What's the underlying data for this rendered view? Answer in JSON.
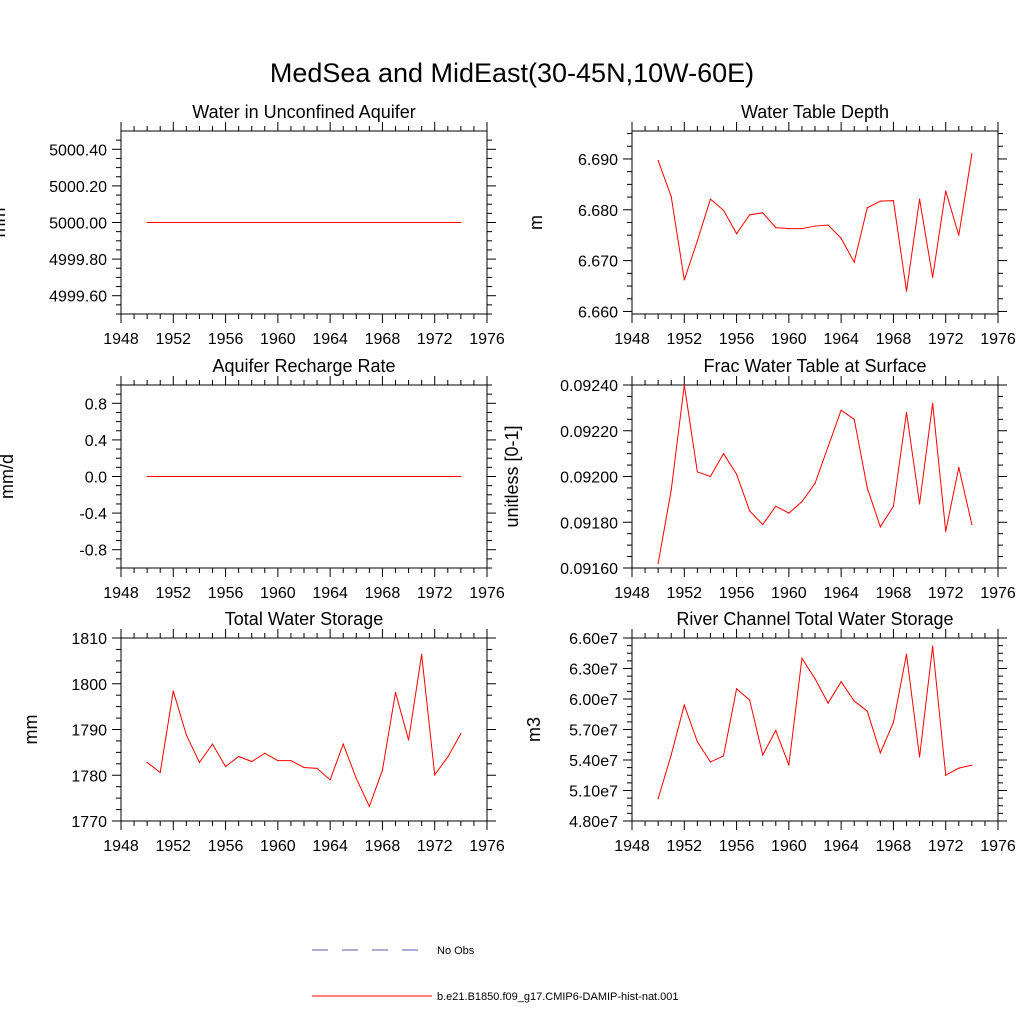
{
  "figure": {
    "title": "MedSea and MidEast(30-45N,10W-60E)"
  },
  "legend": {
    "entries": [
      {
        "label": "No Obs",
        "color": "#5a5aa0",
        "style": "dashed"
      },
      {
        "label": "b.e21.B1850.f09_g17.CMIP6-DAMIP-hist-nat.001",
        "color": "#ff0000",
        "style": "solid"
      }
    ]
  },
  "chart_data": [
    {
      "type": "line",
      "title": "Water in Unconfined Aquifer",
      "ylabel": "mm",
      "xlim": [
        1948,
        1976
      ],
      "ylim": [
        4999.5,
        5000.5
      ],
      "xticks": [
        "1948",
        "1952",
        "1956",
        "1960",
        "1964",
        "1968",
        "1972",
        "1976"
      ],
      "yticks": [
        "4999.60",
        "4999.80",
        "5000.00",
        "5000.20",
        "5000.40"
      ],
      "ytick_values": [
        4999.6,
        4999.8,
        5000.0,
        5000.2,
        5000.4
      ],
      "series": [
        {
          "color": "#ff0000",
          "x": [
            1950,
            1974
          ],
          "y": [
            5000.0,
            5000.0
          ]
        }
      ]
    },
    {
      "type": "line",
      "title": "Water Table Depth",
      "ylabel": "m",
      "xlim": [
        1948,
        1976
      ],
      "ylim": [
        6.6595,
        6.6955
      ],
      "xticks": [
        "1948",
        "1952",
        "1956",
        "1960",
        "1964",
        "1968",
        "1972",
        "1976"
      ],
      "yticks": [
        "6.660",
        "6.670",
        "6.680",
        "6.690"
      ],
      "ytick_values": [
        6.66,
        6.67,
        6.68,
        6.69
      ],
      "series": [
        {
          "color": "#ff0000",
          "x": [
            1950,
            1951,
            1952,
            1953,
            1954,
            1955,
            1956,
            1957,
            1958,
            1959,
            1960,
            1961,
            1962,
            1963,
            1964,
            1965,
            1966,
            1967,
            1968,
            1969,
            1970,
            1971,
            1972,
            1973,
            1974
          ],
          "y": [
            6.6897,
            6.6826,
            6.6662,
            6.6739,
            6.6821,
            6.6799,
            6.6753,
            6.679,
            6.6794,
            6.6765,
            6.6763,
            6.6763,
            6.6768,
            6.677,
            6.6744,
            6.6697,
            6.6804,
            6.6817,
            6.6818,
            6.664,
            6.6821,
            6.6667,
            6.6837,
            6.675,
            6.691
          ]
        }
      ]
    },
    {
      "type": "line",
      "title": "Aquifer Recharge Rate",
      "ylabel": "mm/d",
      "xlim": [
        1948,
        1976
      ],
      "ylim": [
        -1.0,
        1.0
      ],
      "xticks": [
        "1948",
        "1952",
        "1956",
        "1960",
        "1964",
        "1968",
        "1972",
        "1976"
      ],
      "yticks": [
        "-0.8",
        "-0.4",
        "0.0",
        "0.4",
        "0.8"
      ],
      "ytick_values": [
        -0.8,
        -0.4,
        0.0,
        0.4,
        0.8
      ],
      "series": [
        {
          "color": "#ff0000",
          "x": [
            1950,
            1974
          ],
          "y": [
            0.0,
            0.0
          ]
        }
      ]
    },
    {
      "type": "line",
      "title": "Frac Water Table at Surface",
      "ylabel": "unitless [0-1]",
      "xlim": [
        1948,
        1976
      ],
      "ylim": [
        0.0916,
        0.0924
      ],
      "xticks": [
        "1948",
        "1952",
        "1956",
        "1960",
        "1964",
        "1968",
        "1972",
        "1976"
      ],
      "yticks": [
        "0.09160",
        "0.09180",
        "0.09200",
        "0.09220",
        "0.09240"
      ],
      "ytick_values": [
        0.0916,
        0.0918,
        0.092,
        0.0922,
        0.0924
      ],
      "series": [
        {
          "color": "#ff0000",
          "x": [
            1950,
            1951,
            1952,
            1953,
            1954,
            1955,
            1956,
            1957,
            1958,
            1959,
            1960,
            1961,
            1962,
            1963,
            1964,
            1965,
            1966,
            1967,
            1968,
            1969,
            1970,
            1971,
            1972,
            1973,
            1974
          ],
          "y": [
            0.09162,
            0.09194,
            0.0924,
            0.09202,
            0.092,
            0.0921,
            0.09201,
            0.09185,
            0.09179,
            0.09187,
            0.09184,
            0.09189,
            0.09197,
            0.09213,
            0.09229,
            0.09225,
            0.09195,
            0.09178,
            0.09187,
            0.09228,
            0.09188,
            0.09232,
            0.09176,
            0.09204,
            0.09179
          ]
        }
      ]
    },
    {
      "type": "line",
      "title": "Total Water Storage",
      "ylabel": "mm",
      "xlim": [
        1948,
        1976
      ],
      "ylim": [
        1770,
        1810
      ],
      "xticks": [
        "1948",
        "1952",
        "1956",
        "1960",
        "1964",
        "1968",
        "1972",
        "1976"
      ],
      "yticks": [
        "1770",
        "1780",
        "1790",
        "1800",
        "1810"
      ],
      "ytick_values": [
        1770,
        1780,
        1790,
        1800,
        1810
      ],
      "series": [
        {
          "color": "#ff0000",
          "x": [
            1950,
            1951,
            1952,
            1953,
            1954,
            1955,
            1956,
            1957,
            1958,
            1959,
            1960,
            1961,
            1962,
            1963,
            1964,
            1965,
            1966,
            1967,
            1968,
            1969,
            1970,
            1971,
            1972,
            1973,
            1974
          ],
          "y": [
            1782.8,
            1780.6,
            1798.4,
            1788.8,
            1782.8,
            1786.8,
            1781.9,
            1784.1,
            1783.0,
            1784.8,
            1783.2,
            1783.2,
            1781.7,
            1781.5,
            1779.0,
            1786.8,
            1779.3,
            1773.2,
            1781.1,
            1798.1,
            1787.7,
            1806.4,
            1780.1,
            1784.0,
            1789.1
          ]
        }
      ]
    },
    {
      "type": "line",
      "title": "River Channel Total Water Storage",
      "ylabel": "m3",
      "xlim": [
        1948,
        1976
      ],
      "ylim": [
        48000000.0,
        66000000.0
      ],
      "xticks": [
        "1948",
        "1952",
        "1956",
        "1960",
        "1964",
        "1968",
        "1972",
        "1976"
      ],
      "yticks": [
        "4.80e7",
        "5.10e7",
        "5.40e7",
        "5.70e7",
        "6.00e7",
        "6.30e7",
        "6.60e7"
      ],
      "ytick_values": [
        48000000.0,
        51000000.0,
        54000000.0,
        57000000.0,
        60000000.0,
        63000000.0,
        66000000.0
      ],
      "series": [
        {
          "color": "#ff0000",
          "x": [
            1950,
            1951,
            1952,
            1953,
            1954,
            1955,
            1956,
            1957,
            1958,
            1959,
            1960,
            1961,
            1962,
            1963,
            1964,
            1965,
            1966,
            1967,
            1968,
            1969,
            1970,
            1971,
            1972,
            1973,
            1974
          ],
          "y": [
            50200000.0,
            54500000.0,
            59400000.0,
            55800000.0,
            53800000.0,
            54400000.0,
            61000000.0,
            59900000.0,
            54500000.0,
            56900000.0,
            53500000.0,
            64000000.0,
            62000000.0,
            59600000.0,
            61700000.0,
            59800000.0,
            58800000.0,
            54700000.0,
            57700000.0,
            64400000.0,
            54300000.0,
            65200000.0,
            52500000.0,
            53200000.0,
            53500000.0
          ]
        }
      ]
    }
  ]
}
